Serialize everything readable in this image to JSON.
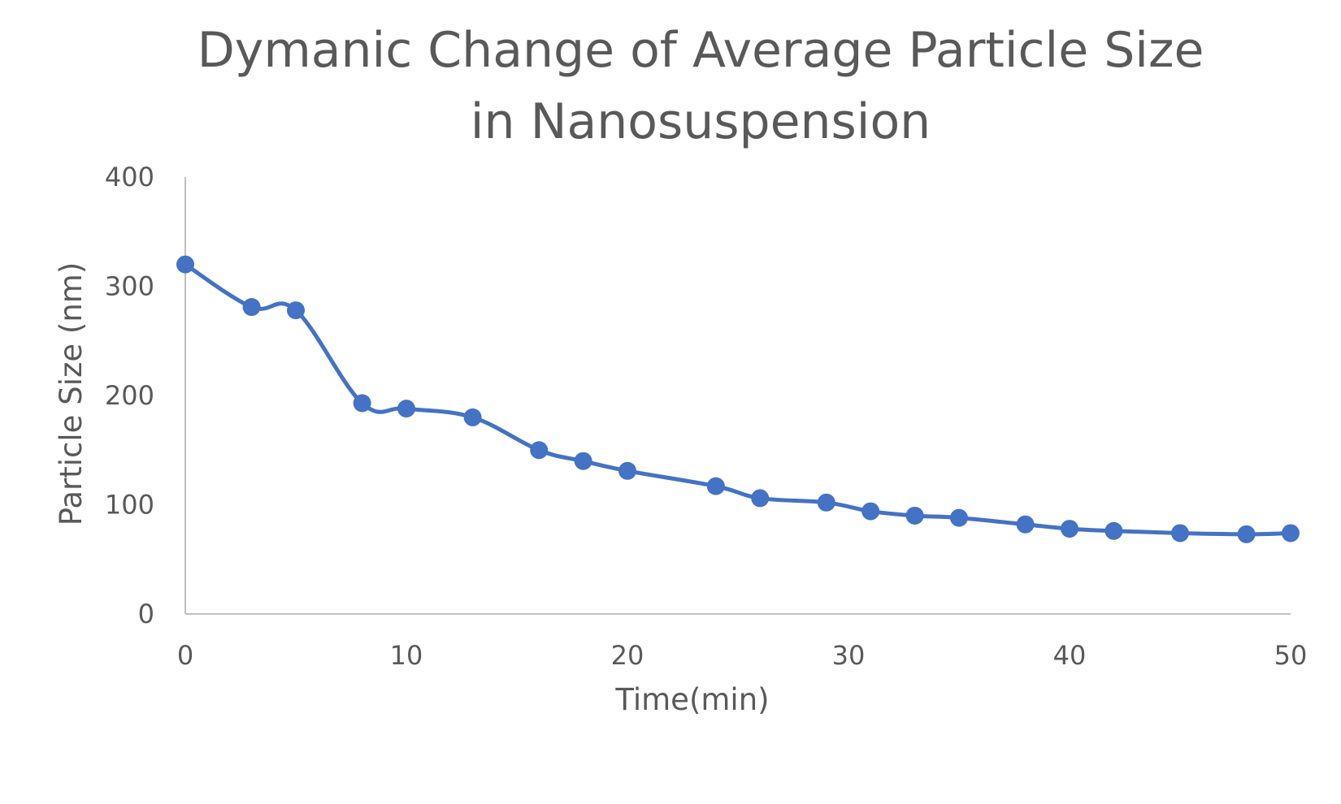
{
  "chart_data": {
    "type": "line",
    "title_lines": [
      "Dymanic Change of Average Particle Size",
      "in Nanosuspension"
    ],
    "xlabel": "Time(min)",
    "ylabel": "Particle Size (nm)",
    "xlim": [
      0,
      50
    ],
    "ylim": [
      0,
      400
    ],
    "x_ticks": [
      "0",
      "10",
      "20",
      "30",
      "40",
      "50"
    ],
    "y_ticks": [
      "0",
      "100",
      "200",
      "300",
      "400"
    ],
    "x_tick_values": [
      0,
      10,
      20,
      30,
      40,
      50
    ],
    "y_tick_values": [
      0,
      100,
      200,
      300,
      400
    ],
    "grid": false,
    "legend": "none",
    "smooth": true,
    "series": [
      {
        "color": "#4472c4",
        "marker": "circle",
        "x": [
          0,
          3,
          5,
          8,
          10,
          13,
          16,
          18,
          20,
          24,
          26,
          29,
          31,
          33,
          35,
          38,
          40,
          42,
          45,
          48,
          50
        ],
        "y": [
          320,
          281,
          278,
          193,
          188,
          180,
          150,
          140,
          131,
          117,
          106,
          102,
          94,
          90,
          88,
          82,
          78,
          76,
          74,
          73,
          74
        ]
      }
    ]
  }
}
